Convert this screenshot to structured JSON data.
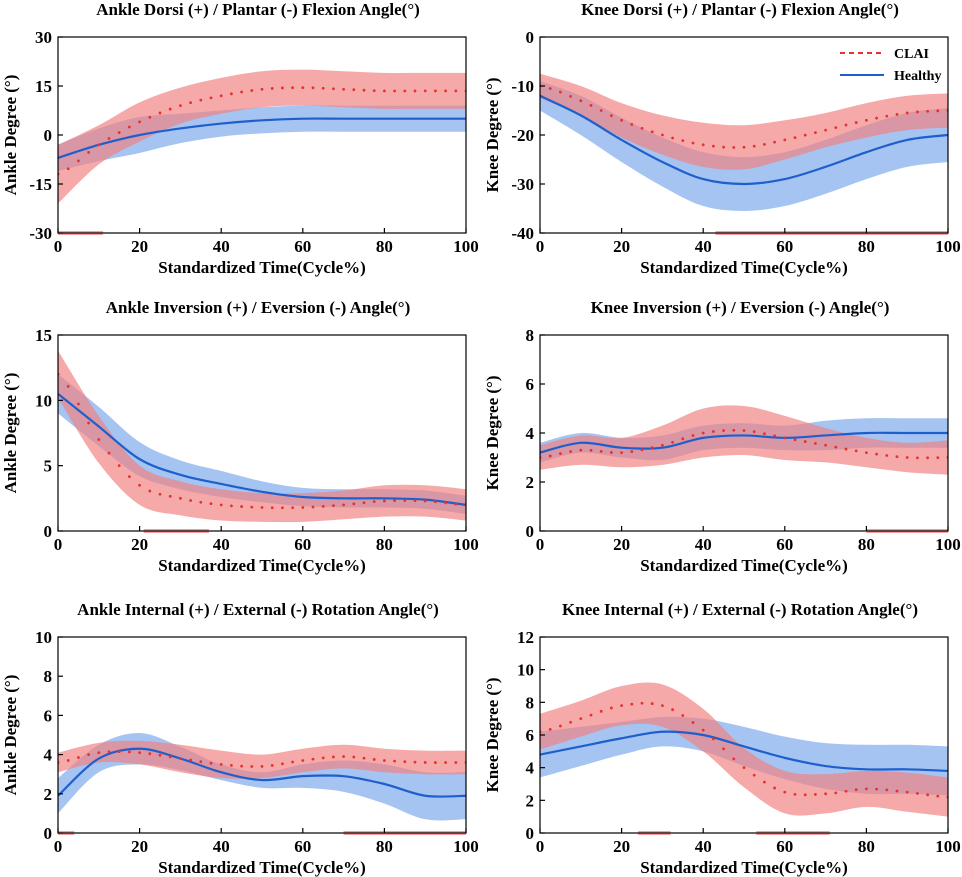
{
  "colors": {
    "clai_line": "#e8312b",
    "clai_band": "#f28080",
    "healthy_line": "#1f5fcc",
    "healthy_band": "#6ea0e8",
    "sig_bar": "#f4a0a0"
  },
  "legend": {
    "clai": "CLAI",
    "healthy": "Healthy"
  },
  "chart_data": [
    {
      "type": "line",
      "title": "Ankle Dorsi (+) / Plantar (-) Flexion Angle(°)",
      "xlabel": "Standardized Time(Cycle%)",
      "ylabel": "Ankle Degree (°)",
      "xlim": [
        0,
        100
      ],
      "ylim": [
        -30,
        30
      ],
      "xticks": [
        0,
        20,
        40,
        60,
        80,
        100
      ],
      "yticks": [
        -30,
        -15,
        0,
        15,
        30
      ],
      "x": [
        0,
        10,
        20,
        30,
        40,
        50,
        60,
        70,
        80,
        90,
        100
      ],
      "series": [
        {
          "name": "CLAI",
          "mean": [
            -12,
            -3,
            4,
            9,
            12,
            14,
            14.5,
            14,
            13.5,
            13.5,
            13.5
          ],
          "sd": [
            9,
            6,
            6,
            5.5,
            5.5,
            5.5,
            5.5,
            5.5,
            5.5,
            5.5,
            5.5
          ]
        },
        {
          "name": "Healthy",
          "mean": [
            -7,
            -3,
            0,
            2,
            3.5,
            4.5,
            5,
            5,
            5,
            5,
            5
          ],
          "sd": [
            4,
            5,
            5.5,
            4.5,
            4,
            4,
            4,
            4,
            4,
            4,
            4
          ]
        }
      ],
      "significance": [
        [
          0,
          11
        ]
      ]
    },
    {
      "type": "line",
      "title": "Knee Dorsi (+) / Plantar (-) Flexion Angle(°)",
      "xlabel": "Standardized Time(Cycle%)",
      "ylabel": "Knee Degree (°)",
      "xlim": [
        0,
        100
      ],
      "ylim": [
        -40,
        0
      ],
      "xticks": [
        0,
        20,
        40,
        60,
        80,
        100
      ],
      "yticks": [
        -40,
        -30,
        -20,
        -10,
        0
      ],
      "x": [
        0,
        10,
        20,
        30,
        40,
        50,
        60,
        70,
        80,
        90,
        100
      ],
      "series": [
        {
          "name": "CLAI",
          "mean": [
            -10,
            -13,
            -17,
            -20,
            -22,
            -22.5,
            -21,
            -19,
            -17,
            -15.5,
            -15
          ],
          "sd": [
            2.5,
            3,
            3.5,
            4,
            4.5,
            4.5,
            4,
            3.5,
            3.5,
            3.5,
            3.5
          ]
        },
        {
          "name": "Healthy",
          "mean": [
            -12,
            -16,
            -21,
            -25.5,
            -29,
            -30,
            -29,
            -26.5,
            -23.5,
            -21,
            -20
          ],
          "sd": [
            3,
            4,
            4.5,
            5,
            5.5,
            5.5,
            5.5,
            5.5,
            5.5,
            5.5,
            5.5
          ]
        }
      ],
      "significance": [
        [
          43,
          100
        ]
      ]
    },
    {
      "type": "line",
      "title": "Ankle Inversion (+) / Eversion (-) Angle(°)",
      "xlabel": "Standardized Time(Cycle%)",
      "ylabel": "Ankle Degree (°)",
      "xlim": [
        0,
        100
      ],
      "ylim": [
        0,
        15
      ],
      "xticks": [
        0,
        20,
        40,
        60,
        80,
        100
      ],
      "yticks": [
        0,
        5,
        10,
        15
      ],
      "x": [
        0,
        10,
        20,
        30,
        40,
        50,
        60,
        70,
        80,
        90,
        100
      ],
      "series": [
        {
          "name": "CLAI",
          "mean": [
            12,
            7,
            3.5,
            2.5,
            2,
            1.8,
            1.8,
            2,
            2.3,
            2.3,
            2
          ],
          "sd": [
            1.8,
            1.8,
            1.5,
            1.3,
            1.2,
            1.1,
            1.1,
            1.1,
            1.2,
            1.2,
            1.2
          ]
        },
        {
          "name": "Healthy",
          "mean": [
            10.5,
            8,
            5.5,
            4.3,
            3.6,
            3,
            2.6,
            2.5,
            2.5,
            2.4,
            2
          ],
          "sd": [
            1.5,
            1.5,
            1.3,
            1.1,
            1,
            0.8,
            0.7,
            0.7,
            0.7,
            0.7,
            0.7
          ]
        }
      ],
      "significance": [
        [
          21,
          37
        ]
      ]
    },
    {
      "type": "line",
      "title": "Knee Inversion (+) / Eversion (-) Angle(°)",
      "xlabel": "Standardized Time(Cycle%)",
      "ylabel": "Knee Degree (°)",
      "xlim": [
        0,
        100
      ],
      "ylim": [
        0,
        8
      ],
      "xticks": [
        0,
        20,
        40,
        60,
        80,
        100
      ],
      "yticks": [
        0,
        2,
        4,
        6,
        8
      ],
      "x": [
        0,
        10,
        20,
        30,
        40,
        50,
        60,
        70,
        80,
        90,
        100
      ],
      "series": [
        {
          "name": "CLAI",
          "mean": [
            3,
            3.3,
            3.2,
            3.5,
            4,
            4.1,
            3.8,
            3.5,
            3.2,
            3.0,
            3.0
          ],
          "sd": [
            0.5,
            0.6,
            0.6,
            0.8,
            1.0,
            1.0,
            0.9,
            0.7,
            0.6,
            0.6,
            0.7
          ]
        },
        {
          "name": "Healthy",
          "mean": [
            3.2,
            3.6,
            3.4,
            3.4,
            3.8,
            3.9,
            3.8,
            3.9,
            4.0,
            4.0,
            4.0
          ],
          "sd": [
            0.4,
            0.4,
            0.4,
            0.5,
            0.5,
            0.5,
            0.5,
            0.6,
            0.6,
            0.6,
            0.6
          ]
        }
      ],
      "significance": [
        [
          80,
          100
        ]
      ]
    },
    {
      "type": "line",
      "title": "Ankle Internal (+) / External (-) Rotation Angle(°)",
      "xlabel": "Standardized Time(Cycle%)",
      "ylabel": "Ankle Degree (°)",
      "xlim": [
        0,
        100
      ],
      "ylim": [
        0,
        10
      ],
      "xticks": [
        0,
        20,
        40,
        60,
        80,
        100
      ],
      "yticks": [
        0,
        2,
        4,
        6,
        8,
        10
      ],
      "x": [
        0,
        10,
        20,
        30,
        40,
        50,
        60,
        70,
        80,
        90,
        100
      ],
      "series": [
        {
          "name": "CLAI",
          "mean": [
            3.6,
            4.1,
            4.1,
            3.8,
            3.5,
            3.4,
            3.7,
            3.9,
            3.7,
            3.6,
            3.6
          ],
          "sd": [
            0.5,
            0.5,
            0.6,
            0.7,
            0.7,
            0.6,
            0.6,
            0.6,
            0.6,
            0.6,
            0.6
          ]
        },
        {
          "name": "Healthy",
          "mean": [
            1.9,
            3.8,
            4.3,
            3.8,
            3.1,
            2.7,
            2.9,
            2.9,
            2.5,
            1.9,
            1.9
          ],
          "sd": [
            0.9,
            0.7,
            0.8,
            0.6,
            0.4,
            0.4,
            0.6,
            0.8,
            1.0,
            1.2,
            1.2
          ]
        }
      ],
      "significance": [
        [
          0,
          4
        ],
        [
          70,
          100
        ]
      ]
    },
    {
      "type": "line",
      "title": "Knee Internal (+) / External (-) Rotation Angle(°)",
      "xlabel": "Standardized Time(Cycle%)",
      "ylabel": "Knee Degree (°)",
      "xlim": [
        0,
        100
      ],
      "ylim": [
        0,
        12
      ],
      "xticks": [
        0,
        20,
        40,
        60,
        80,
        100
      ],
      "yticks": [
        0,
        2,
        4,
        6,
        8,
        10,
        12
      ],
      "x": [
        0,
        10,
        20,
        30,
        40,
        50,
        60,
        70,
        80,
        90,
        100
      ],
      "series": [
        {
          "name": "CLAI",
          "mean": [
            6.2,
            7,
            7.8,
            7.8,
            6.3,
            4,
            2.5,
            2.4,
            2.7,
            2.5,
            2.2
          ],
          "sd": [
            1.1,
            1.1,
            1.2,
            1.3,
            1.3,
            1.2,
            1.3,
            1.2,
            1.1,
            1.2,
            1.2
          ]
        },
        {
          "name": "Healthy",
          "mean": [
            4.8,
            5.3,
            5.8,
            6.2,
            6,
            5.3,
            4.6,
            4.1,
            3.9,
            3.9,
            3.8
          ],
          "sd": [
            1.4,
            1.2,
            1.0,
            0.9,
            1.0,
            1.2,
            1.3,
            1.4,
            1.5,
            1.5,
            1.5
          ]
        }
      ],
      "significance": [
        [
          24,
          32
        ],
        [
          53,
          71
        ]
      ]
    }
  ]
}
